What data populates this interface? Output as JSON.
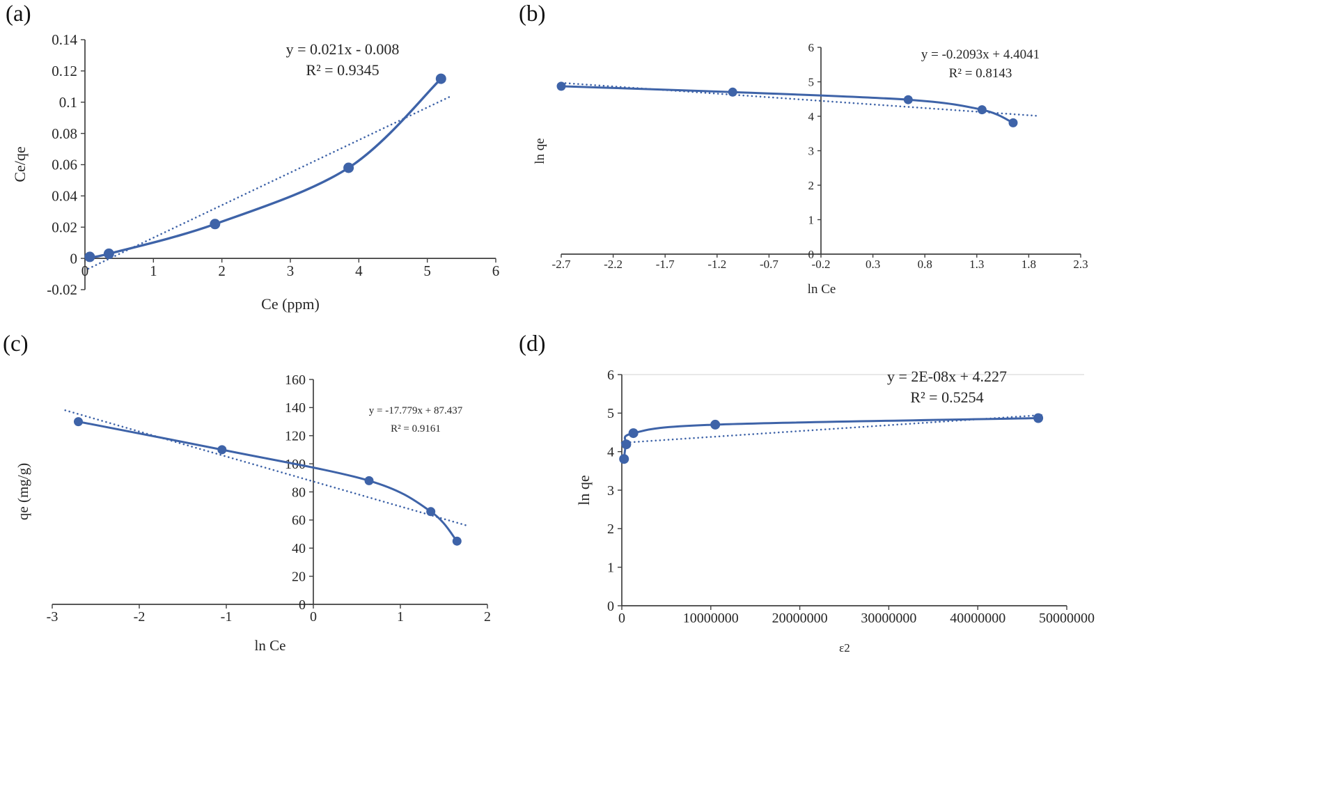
{
  "figure": {
    "background": "#ffffff",
    "accent": "#3e63a8",
    "axis_color": "#3f3f3f",
    "text_color": "#262626"
  },
  "chart_data": [
    {
      "panel_label": "(a)",
      "type": "scatter",
      "x": [
        0.07,
        0.35,
        1.9,
        3.85,
        5.2
      ],
      "y": [
        0.001,
        0.003,
        0.022,
        0.058,
        0.115
      ],
      "xlabel": "Ce (ppm)",
      "ylabel": "Ce/qe",
      "xlim": [
        0,
        6
      ],
      "ylim": [
        -0.02,
        0.14
      ],
      "axis_cross": {
        "x_axis_at_y": 0,
        "y_axis_at_x": 0
      },
      "xticks": {
        "values": [
          0,
          1,
          2,
          3,
          4,
          5,
          6
        ],
        "labels": [
          "0",
          "1",
          "2",
          "3",
          "4",
          "5",
          "6"
        ]
      },
      "yticks": {
        "values": [
          -0.02,
          0,
          0.02,
          0.04,
          0.06,
          0.08,
          0.1,
          0.12,
          0.14
        ],
        "labels": [
          "-0.02",
          "0",
          "0.02",
          "0.04",
          "0.06",
          "0.08",
          "0.1",
          "0.12",
          "0.14"
        ]
      },
      "trendline": {
        "equation": "y = 0.021x - 0.008",
        "r2": "R² = 0.9345",
        "x_range": [
          0.05,
          5.35
        ]
      },
      "grid": false,
      "legend": false
    },
    {
      "panel_label": "(b)",
      "type": "scatter",
      "x": [
        -2.7,
        -1.05,
        0.64,
        1.35,
        1.65
      ],
      "y": [
        4.87,
        4.7,
        4.48,
        4.19,
        3.81
      ],
      "xlabel": "ln Ce",
      "ylabel": "ln qe",
      "xlim": [
        -2.7,
        2.3
      ],
      "ylim": [
        0,
        6
      ],
      "axis_cross": {
        "x_axis_at_y": 0,
        "y_axis_at_x": -0.2
      },
      "xticks": {
        "values": [
          -2.7,
          -2.2,
          -1.7,
          -1.2,
          -0.7,
          -0.2,
          0.3,
          0.8,
          1.3,
          1.8,
          2.3
        ],
        "labels": [
          "-2.7",
          "-2.2",
          "-1.7",
          "-1.2",
          "-0.7",
          "-0.2",
          "0.3",
          "0.8",
          "1.3",
          "1.8",
          "2.3"
        ]
      },
      "yticks": {
        "values": [
          0,
          1,
          2,
          3,
          4,
          5,
          6
        ],
        "labels": [
          "0",
          "1",
          "2",
          "3",
          "4",
          "5",
          "6"
        ]
      },
      "trendline": {
        "equation": "y = -0.2093x + 4.4041",
        "r2": "R² = 0.8143",
        "x_range": [
          -2.7,
          1.9
        ]
      },
      "grid": false,
      "legend": false
    },
    {
      "panel_label": "(c)",
      "type": "scatter",
      "x": [
        -2.7,
        -1.05,
        0.64,
        1.35,
        1.65
      ],
      "y": [
        130,
        110,
        88,
        66,
        45
      ],
      "xlabel": "ln Ce",
      "ylabel": "qe (mg/g)",
      "xlim": [
        -3,
        2
      ],
      "ylim": [
        0,
        160
      ],
      "axis_cross": {
        "x_axis_at_y": 0,
        "y_axis_at_x": 0
      },
      "xticks": {
        "values": [
          -3,
          -2,
          -1,
          0,
          1,
          2
        ],
        "labels": [
          "-3",
          "-2",
          "-1",
          "0",
          "1",
          "2"
        ]
      },
      "yticks": {
        "values": [
          0,
          20,
          40,
          60,
          80,
          100,
          120,
          140,
          160
        ],
        "labels": [
          "0",
          "20",
          "40",
          "60",
          "80",
          "100",
          "120",
          "140",
          "160"
        ]
      },
      "trendline": {
        "equation": "y = -17.779x + 87.437",
        "r2": "R² = 0.9161",
        "x_range": [
          -2.85,
          1.75
        ]
      },
      "grid": false,
      "legend": false
    },
    {
      "panel_label": "(d)",
      "type": "scatter",
      "x": [
        250000,
        500000,
        1300000,
        10500000,
        46800000
      ],
      "y": [
        3.81,
        4.19,
        4.48,
        4.7,
        4.87
      ],
      "xlabel": "ε2",
      "ylabel": "ln qe",
      "xlim": [
        0,
        50000000
      ],
      "ylim": [
        0,
        6
      ],
      "axis_cross": {
        "x_axis_at_y": 0,
        "y_axis_at_x": 0
      },
      "xticks": {
        "values": [
          0,
          10000000,
          20000000,
          30000000,
          40000000,
          50000000
        ],
        "labels": [
          "0",
          "10000000",
          "20000000",
          "30000000",
          "40000000",
          "50000000"
        ]
      },
      "yticks": {
        "values": [
          0,
          1,
          2,
          3,
          4,
          5,
          6
        ],
        "labels": [
          "0",
          "1",
          "2",
          "3",
          "4",
          "5",
          "6"
        ]
      },
      "trendline": {
        "equation": "y = 2E-08x + 4.227",
        "r2": "R² = 0.5254",
        "x_range": [
          0,
          47500000
        ]
      },
      "grid": false,
      "legend": false
    }
  ]
}
